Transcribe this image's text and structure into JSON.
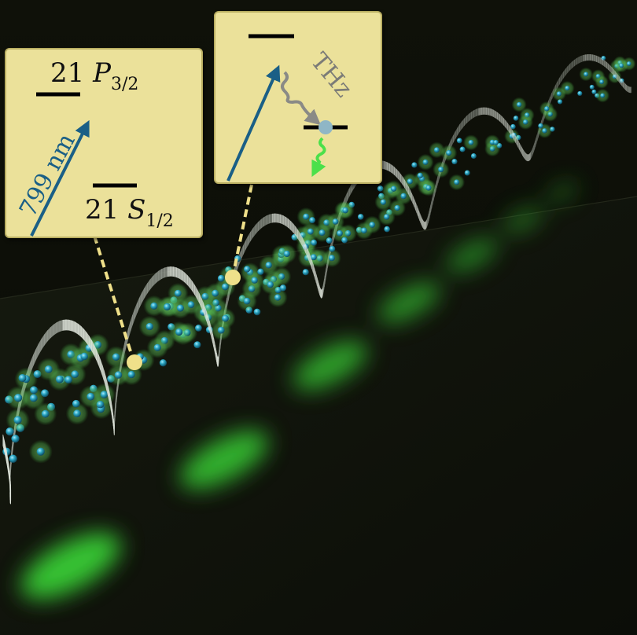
{
  "left_box": {
    "upper_level": {
      "prefix": "21 ",
      "symbol": "P",
      "sub": "3/2"
    },
    "lower_level": {
      "prefix": "21 ",
      "symbol": "S",
      "sub": "1/2"
    },
    "wavelength": "799 nm"
  },
  "right_box": {
    "thz_label": "THz"
  },
  "colors": {
    "box_fill": "#ebe19a",
    "box_stroke": "#b9ae62",
    "arrow_blue": "#1a5f86",
    "arrow_gray": "#8a8a86",
    "arrow_green": "#4be04a",
    "connector": "#efe08a",
    "ribbon": "#d8ddd6",
    "glow_green": "#3ce23a",
    "atom_teal": "#2aa6c2"
  }
}
